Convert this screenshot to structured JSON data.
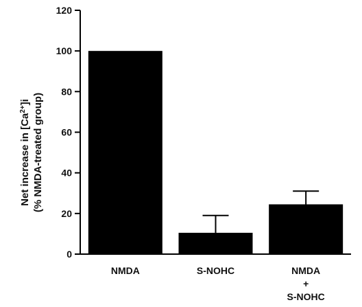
{
  "chart_data": {
    "type": "bar",
    "title": "",
    "xlabel": "",
    "ylabel_line1_pre": "Net increase in [Ca",
    "ylabel_line1_sup": "2+",
    "ylabel_line1_post": "]i",
    "ylabel_line2": "(% NMDA-treated group)",
    "ylim": [
      0,
      120
    ],
    "yticks": [
      0,
      20,
      40,
      60,
      80,
      100,
      120
    ],
    "categories": [
      {
        "lines": [
          "NMDA"
        ]
      },
      {
        "lines": [
          "S-NOHC"
        ]
      },
      {
        "lines": [
          "NMDA",
          "+",
          "S-NOHC"
        ]
      }
    ],
    "values": [
      100,
      10.5,
      24.5
    ],
    "errors": [
      0,
      8.5,
      6.5
    ],
    "bar_color": "#000000"
  }
}
